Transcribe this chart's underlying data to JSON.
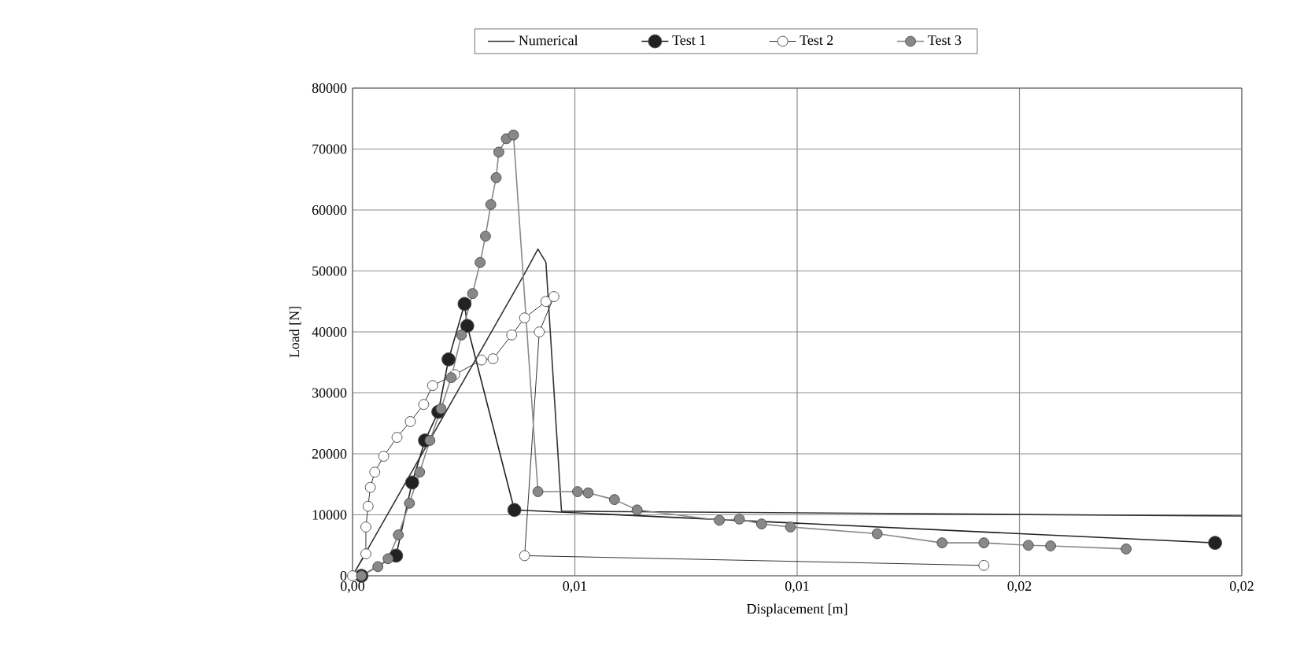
{
  "chart_data": {
    "type": "line",
    "xlabel": "Displacement [m]",
    "ylabel": "Load [N]",
    "xlim": [
      0,
      0.02
    ],
    "ylim": [
      0,
      80000
    ],
    "xticks": [
      {
        "value": 0,
        "label": "0,00"
      },
      {
        "value": 0.005,
        "label": "0,01"
      },
      {
        "value": 0.01,
        "label": "0,01"
      },
      {
        "value": 0.015,
        "label": "0,02"
      },
      {
        "value": 0.02,
        "label": "0,02"
      }
    ],
    "yticks": [
      0,
      10000,
      20000,
      30000,
      40000,
      50000,
      60000,
      70000,
      80000
    ],
    "grid": true,
    "legend": "top",
    "series": [
      {
        "name": "Numerical",
        "color": "#333333",
        "marker": "none",
        "x": [
          0,
          0.00388,
          0.00417,
          0.00435,
          0.0047,
          0.02
        ],
        "values": [
          0,
          49700,
          53600,
          51400,
          10600,
          9800
        ]
      },
      {
        "name": "Test 1",
        "color": "#222222",
        "marker": "circle",
        "x": [
          0.0002,
          0.00057,
          0.00098,
          0.00134,
          0.00163,
          0.00193,
          0.00216,
          0.00252,
          0.00258,
          0.00364,
          0.0194
        ],
        "values": [
          0,
          null,
          3300,
          15300,
          22200,
          26900,
          35500,
          44600,
          41000,
          10800,
          5400
        ]
      },
      {
        "name": "Test 2",
        "color": "#ffffff",
        "marker": "circle",
        "x": [
          0,
          0.0003,
          0.0003,
          0.00035,
          0.0004,
          0.0005,
          0.0007,
          0.001,
          0.0013,
          0.0016,
          0.0018,
          0.0023,
          0.0029,
          0.00316,
          0.00358,
          0.00387,
          0.00435,
          0.00453,
          0.0042,
          0.00387,
          0.0142
        ],
        "values": [
          0,
          3600,
          8000,
          11400,
          14500,
          17000,
          19600,
          22700,
          25300,
          28100,
          31200,
          33000,
          35400,
          35600,
          39500,
          42300,
          45000,
          45800,
          40000,
          3300,
          1700
        ]
      },
      {
        "name": "Test 3",
        "color": "#888888",
        "marker": "circle",
        "x": [
          0.0002,
          0.00057,
          0.0008,
          0.00103,
          0.00128,
          0.00151,
          0.00174,
          0.00199,
          0.00222,
          0.00245,
          0.0027,
          0.00287,
          0.00299,
          0.00311,
          0.00323,
          0.00329,
          0.00346,
          0.00362,
          0.00417,
          0.00506,
          0.0053,
          0.00589,
          0.0064,
          0.00825,
          0.0087,
          0.0092,
          0.00985,
          0.0118,
          0.01326,
          0.0142,
          0.0152,
          0.0157,
          0.0174
        ],
        "values": [
          0,
          1500,
          2800,
          6700,
          11900,
          17000,
          22200,
          27400,
          32500,
          39500,
          46300,
          51400,
          55700,
          60900,
          65300,
          69500,
          71700,
          72300,
          13800,
          13800,
          13600,
          12500,
          10800,
          9100,
          9300,
          8500,
          8000,
          6900,
          5400,
          5400,
          5000,
          4900,
          4400
        ]
      }
    ]
  }
}
